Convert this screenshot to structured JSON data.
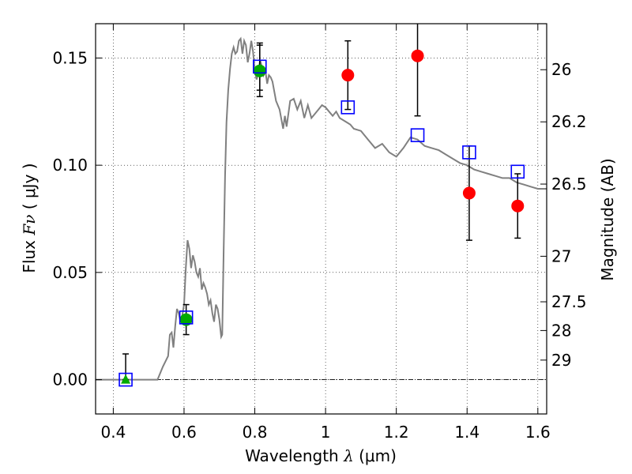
{
  "chart_data": {
    "type": "scatter",
    "title": "",
    "xlabel": "Wavelength",
    "xlabel_symbol": "λ",
    "xlabel_unit": "(μm)",
    "ylabel": "Flux",
    "ylabel_symbol": "Fν",
    "ylabel_unit": "( μJy )",
    "y2label": "Magnitude (AB)",
    "xlim": [
      0.35,
      1.625
    ],
    "ylim": [
      -0.016,
      0.166
    ],
    "grid": true,
    "zero_line": true,
    "x_ticks": [
      {
        "value": 0.4,
        "label": "0.4"
      },
      {
        "value": 0.6,
        "label": "0.6"
      },
      {
        "value": 0.8,
        "label": "0.8"
      },
      {
        "value": 1.0,
        "label": "1"
      },
      {
        "value": 1.2,
        "label": "1.2"
      },
      {
        "value": 1.4,
        "label": "1.4"
      },
      {
        "value": 1.6,
        "label": "1.6"
      }
    ],
    "y_ticks": [
      {
        "value": 0.0,
        "label": "0.00"
      },
      {
        "value": 0.05,
        "label": "0.05"
      },
      {
        "value": 0.1,
        "label": "0.10"
      },
      {
        "value": 0.15,
        "label": "0.15"
      }
    ],
    "mag_ticks": [
      {
        "value": 26,
        "label": "26"
      },
      {
        "value": 26.2,
        "label": "26.2"
      },
      {
        "value": 26.5,
        "label": "26.5"
      },
      {
        "value": 27,
        "label": "27"
      },
      {
        "value": 27.5,
        "label": "27.5"
      },
      {
        "value": 28,
        "label": "28"
      },
      {
        "value": 29,
        "label": "29"
      }
    ],
    "colors": {
      "model": "#808080",
      "model_photometry": "#0000ff",
      "detection_optical": "#00aa00",
      "detection_nir": "#ff0000",
      "upper_limit": "#00aa00",
      "errorbar": "#000000",
      "grid": "#b0b0b0"
    },
    "series": [
      {
        "name": "template-sed",
        "kind": "line",
        "x": [
          0.35,
          0.525,
          0.54,
          0.555,
          0.56,
          0.565,
          0.57,
          0.575,
          0.58,
          0.585,
          0.59,
          0.595,
          0.6,
          0.605,
          0.61,
          0.615,
          0.62,
          0.625,
          0.63,
          0.635,
          0.64,
          0.645,
          0.65,
          0.655,
          0.66,
          0.665,
          0.67,
          0.675,
          0.68,
          0.685,
          0.69,
          0.695,
          0.7,
          0.705,
          0.708,
          0.712,
          0.716,
          0.72,
          0.725,
          0.73,
          0.735,
          0.74,
          0.745,
          0.75,
          0.755,
          0.76,
          0.765,
          0.77,
          0.775,
          0.78,
          0.785,
          0.79,
          0.795,
          0.8,
          0.805,
          0.81,
          0.815,
          0.82,
          0.825,
          0.83,
          0.835,
          0.84,
          0.845,
          0.85,
          0.86,
          0.87,
          0.88,
          0.885,
          0.89,
          0.9,
          0.91,
          0.92,
          0.93,
          0.94,
          0.95,
          0.96,
          0.97,
          0.98,
          0.99,
          1.0,
          1.01,
          1.02,
          1.03,
          1.04,
          1.05,
          1.06,
          1.07,
          1.08,
          1.1,
          1.12,
          1.14,
          1.16,
          1.18,
          1.2,
          1.22,
          1.24,
          1.26,
          1.28,
          1.3,
          1.32,
          1.34,
          1.36,
          1.38,
          1.4,
          1.42,
          1.44,
          1.46,
          1.48,
          1.5,
          1.52,
          1.54,
          1.56,
          1.58,
          1.6,
          1.625
        ],
        "y": [
          0.0,
          0.0,
          0.006,
          0.011,
          0.021,
          0.022,
          0.015,
          0.025,
          0.033,
          0.031,
          0.027,
          0.03,
          0.035,
          0.052,
          0.065,
          0.061,
          0.052,
          0.058,
          0.055,
          0.05,
          0.048,
          0.052,
          0.042,
          0.045,
          0.043,
          0.04,
          0.035,
          0.037,
          0.031,
          0.027,
          0.035,
          0.033,
          0.028,
          0.02,
          0.021,
          0.06,
          0.095,
          0.12,
          0.135,
          0.145,
          0.152,
          0.155,
          0.152,
          0.153,
          0.158,
          0.159,
          0.152,
          0.158,
          0.156,
          0.148,
          0.152,
          0.158,
          0.153,
          0.144,
          0.14,
          0.143,
          0.149,
          0.146,
          0.142,
          0.144,
          0.138,
          0.142,
          0.141,
          0.139,
          0.13,
          0.126,
          0.117,
          0.123,
          0.118,
          0.13,
          0.131,
          0.126,
          0.13,
          0.122,
          0.128,
          0.122,
          0.124,
          0.126,
          0.128,
          0.127,
          0.125,
          0.123,
          0.125,
          0.122,
          0.121,
          0.12,
          0.119,
          0.117,
          0.116,
          0.112,
          0.108,
          0.11,
          0.106,
          0.104,
          0.108,
          0.113,
          0.112,
          0.109,
          0.108,
          0.107,
          0.105,
          0.103,
          0.101,
          0.1,
          0.098,
          0.097,
          0.096,
          0.095,
          0.094,
          0.094,
          0.092,
          0.091,
          0.09,
          0.089,
          0.089
        ]
      },
      {
        "name": "model-photometry",
        "kind": "square",
        "x": [
          0.435,
          0.606,
          0.814,
          1.063,
          1.26,
          1.406,
          1.543
        ],
        "y": [
          0.0,
          0.029,
          0.146,
          0.127,
          0.114,
          0.106,
          0.097
        ]
      },
      {
        "name": "observed-detections-optical",
        "kind": "circle",
        "x": [
          0.606,
          0.814
        ],
        "y": [
          0.028,
          0.144
        ],
        "yerr": [
          0.007,
          0.012
        ]
      },
      {
        "name": "observed-detections-nir",
        "kind": "circle",
        "x": [
          1.063,
          1.26,
          1.406,
          1.543
        ],
        "y": [
          0.142,
          0.151,
          0.087,
          0.081
        ],
        "yerr": [
          0.016,
          0.028,
          0.022,
          0.015
        ]
      },
      {
        "name": "observed-nondetection",
        "kind": "triangle",
        "x": [
          0.435
        ],
        "y": [
          0.0
        ],
        "yerr_up": [
          0.012
        ]
      }
    ],
    "model_errorbars": [
      {
        "x": 0.814,
        "y": 0.146,
        "yerr": 0.011
      },
      {
        "x": 1.063,
        "y": 0.127,
        "yerr": 0.0
      }
    ],
    "legend": "none"
  }
}
